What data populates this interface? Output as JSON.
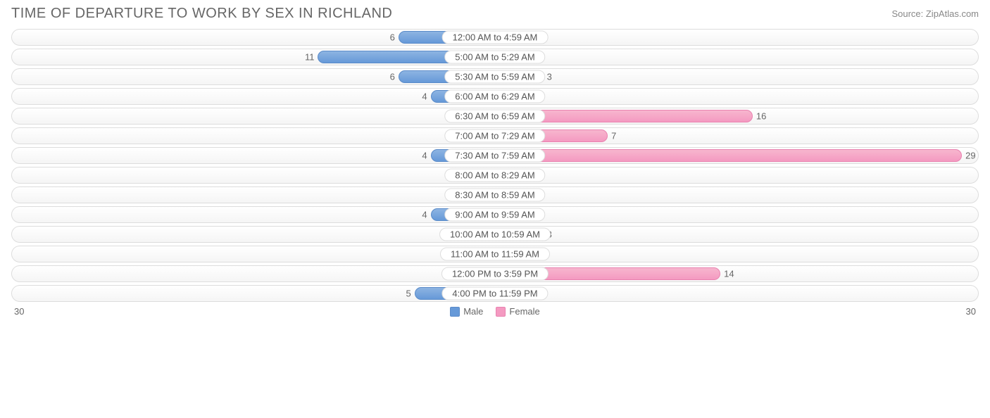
{
  "title": "TIME OF DEPARTURE TO WORK BY SEX IN RICHLAND",
  "source": "Source: ZipAtlas.com",
  "axis_max": 30,
  "axis_left_label": "30",
  "axis_right_label": "30",
  "min_bar_pct": 8.0,
  "colors": {
    "male_bar": "#6699d8",
    "female_bar": "#f49ac1",
    "track_border": "#dddddd",
    "text": "#666666",
    "title_text": "#666666",
    "background": "#ffffff"
  },
  "legend": {
    "male": "Male",
    "female": "Female"
  },
  "rows": [
    {
      "label": "12:00 AM to 4:59 AM",
      "male": 6,
      "female": 0
    },
    {
      "label": "5:00 AM to 5:29 AM",
      "male": 11,
      "female": 0
    },
    {
      "label": "5:30 AM to 5:59 AM",
      "male": 6,
      "female": 3
    },
    {
      "label": "6:00 AM to 6:29 AM",
      "male": 4,
      "female": 0
    },
    {
      "label": "6:30 AM to 6:59 AM",
      "male": 1,
      "female": 16
    },
    {
      "label": "7:00 AM to 7:29 AM",
      "male": 1,
      "female": 7
    },
    {
      "label": "7:30 AM to 7:59 AM",
      "male": 4,
      "female": 29
    },
    {
      "label": "8:00 AM to 8:29 AM",
      "male": 2,
      "female": 0
    },
    {
      "label": "8:30 AM to 8:59 AM",
      "male": 0,
      "female": 0
    },
    {
      "label": "9:00 AM to 9:59 AM",
      "male": 4,
      "female": 1
    },
    {
      "label": "10:00 AM to 10:59 AM",
      "male": 0,
      "female": 3
    },
    {
      "label": "11:00 AM to 11:59 AM",
      "male": 0,
      "female": 0
    },
    {
      "label": "12:00 PM to 3:59 PM",
      "male": 2,
      "female": 14
    },
    {
      "label": "4:00 PM to 11:59 PM",
      "male": 5,
      "female": 2
    }
  ]
}
